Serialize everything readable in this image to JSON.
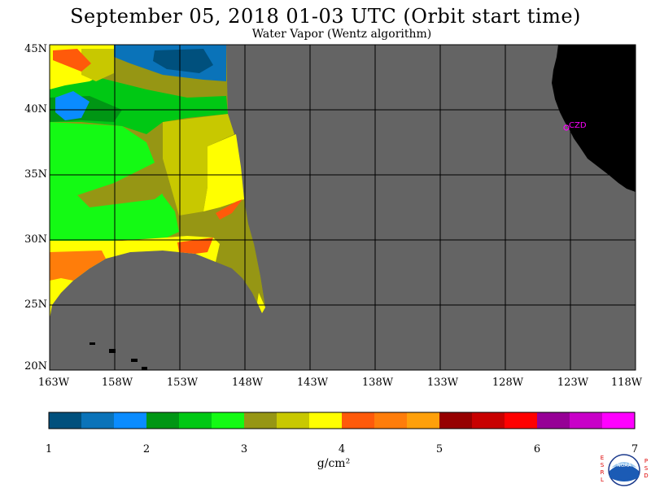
{
  "title": "September 05, 2018  01-03 UTC  (Orbit start time)",
  "subtitle": "Water Vapor (Wentz algorithm)",
  "map": {
    "lat_labels": [
      "45N",
      "40N",
      "35N",
      "30N",
      "25N",
      "20N"
    ],
    "lon_labels": [
      "163W",
      "158W",
      "153W",
      "148W",
      "143W",
      "138W",
      "133W",
      "128W",
      "123W",
      "118W"
    ],
    "station_label": "CZD",
    "colors": {
      "no_data": "#646464",
      "land": "#000000",
      "station": "#ff00ff"
    }
  },
  "colorbar": {
    "tick_labels": [
      "1",
      "2",
      "3",
      "4",
      "5",
      "6",
      "7"
    ],
    "units": "g/cm²",
    "colors": [
      "#00507d",
      "#0a73b9",
      "#0a8cff",
      "#009614",
      "#00c814",
      "#14fa14",
      "#969614",
      "#c8c800",
      "#ffff00",
      "#ff5a0a",
      "#ff7d0a",
      "#ffa00a",
      "#960000",
      "#c80000",
      "#ff0000",
      "#960096",
      "#c800c8",
      "#ff00ff"
    ]
  },
  "logo": {
    "left_letters": "ESRL",
    "right_letters": "PSD",
    "center_text": "NOAA"
  }
}
